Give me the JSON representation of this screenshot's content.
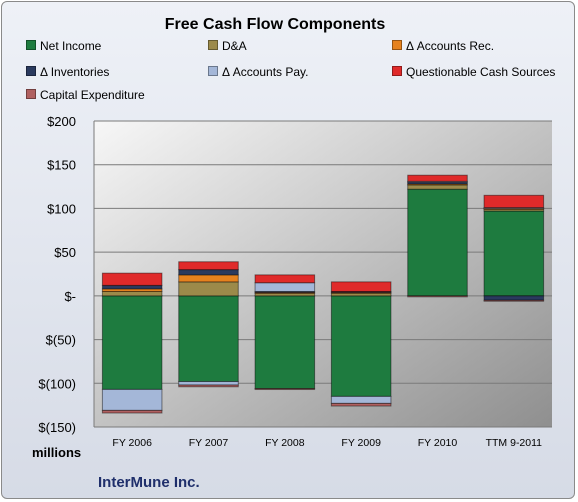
{
  "chart_data": {
    "type": "bar",
    "stacked": true,
    "title": "Free Cash Flow Components",
    "units_label": "millions",
    "company": "InterMune Inc.",
    "categories": [
      "FY 2006",
      "FY 2007",
      "FY 2008",
      "FY 2009",
      "FY 2010",
      "TTM 9-2011"
    ],
    "ylim": [
      -150,
      200
    ],
    "yticks": [
      200,
      150,
      100,
      50,
      0,
      -50,
      -100,
      -150
    ],
    "ytick_labels": [
      "$200",
      "$150",
      "$100",
      "$50",
      "$-",
      "$(50)",
      "$(100)",
      "$(150)"
    ],
    "grid": true,
    "legend_position": "top",
    "series": [
      {
        "name": "Net Income",
        "color": "#1e7b3f",
        "values": [
          -107,
          -98,
          -106,
          -115,
          122,
          97
        ]
      },
      {
        "name": "D&A",
        "color": "#9c8a4a",
        "values": [
          5,
          16,
          3,
          3,
          5,
          2
        ]
      },
      {
        "name": "Δ Accounts Rec.",
        "color": "#e6821e",
        "values": [
          3,
          8,
          1,
          1,
          1,
          1
        ]
      },
      {
        "name": "Δ Inventories",
        "color": "#2a3a5e",
        "values": [
          4,
          6,
          1,
          1,
          2,
          -5
        ]
      },
      {
        "name": "Δ Accounts Pay.",
        "color": "#a4b7d8",
        "values": [
          -24,
          -4,
          10,
          -8,
          1,
          1
        ]
      },
      {
        "name": "Questionable Cash Sources",
        "color": "#e02a2a",
        "values": [
          14,
          9,
          9,
          11,
          7,
          14
        ]
      },
      {
        "name": "Capital Expenditure",
        "color": "#b06060",
        "values": [
          -3,
          -2,
          -1,
          -3,
          -1,
          -1
        ]
      }
    ]
  }
}
